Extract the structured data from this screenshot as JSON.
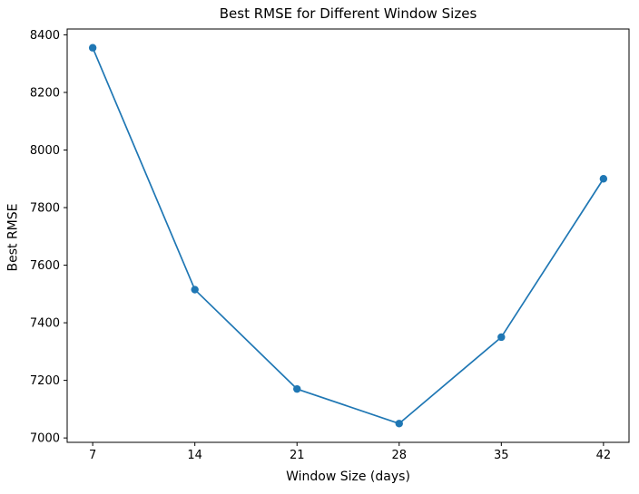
{
  "chart_data": {
    "type": "line",
    "title": "Best RMSE for Different Window Sizes",
    "xlabel": "Window Size (days)",
    "ylabel": "Best RMSE",
    "x": [
      7,
      14,
      21,
      28,
      35,
      42
    ],
    "y": [
      8355,
      7515,
      7170,
      7050,
      7350,
      7900
    ],
    "xticks": [
      7,
      14,
      21,
      28,
      35,
      42
    ],
    "yticks": [
      7000,
      7200,
      7400,
      7600,
      7800,
      8000,
      8200,
      8400
    ],
    "xlim": [
      5.25,
      43.75
    ],
    "ylim": [
      6984.75,
      8420.25
    ],
    "grid": false,
    "legend": "none",
    "line_color": "#1f77b4",
    "marker": "o",
    "axis_color": "#000000",
    "background_color": "#ffffff"
  }
}
